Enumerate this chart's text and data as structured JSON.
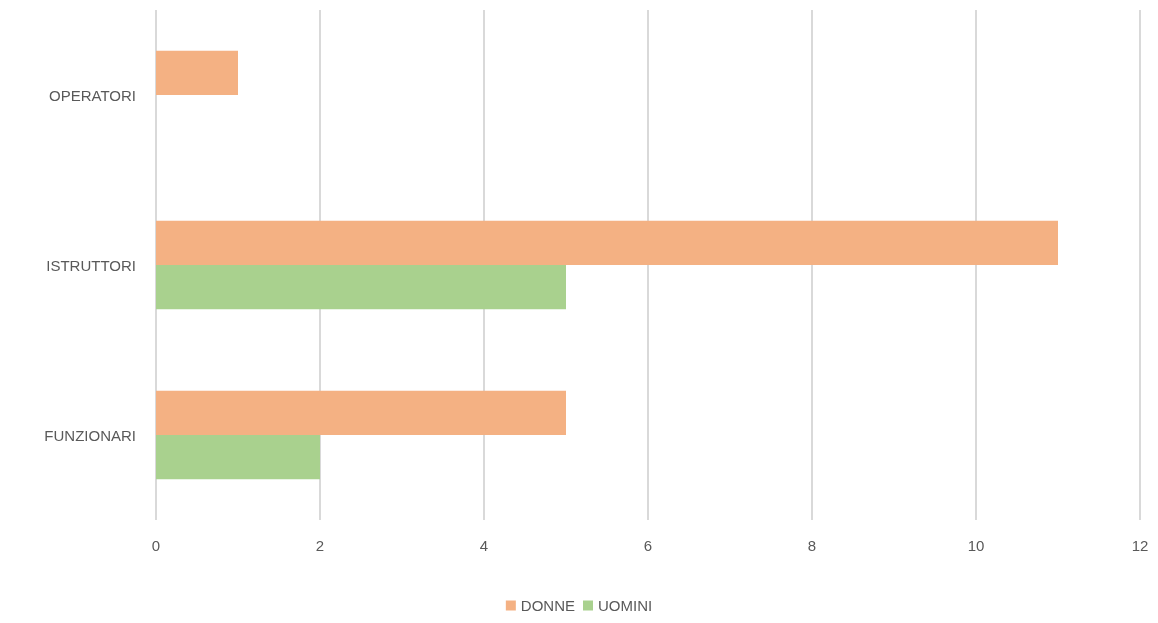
{
  "chart_data": {
    "type": "bar",
    "orientation": "horizontal",
    "categories": [
      "OPERATORI",
      "ISTRUTTORI",
      "FUNZIONARI"
    ],
    "series": [
      {
        "name": "DONNE",
        "color": "#f4b183",
        "values": [
          1,
          11,
          5
        ]
      },
      {
        "name": "UOMINI",
        "color": "#a9d18e",
        "values": [
          null,
          5,
          2
        ]
      }
    ],
    "xlim": [
      0,
      12
    ],
    "xticks": [
      0,
      2,
      4,
      6,
      8,
      10,
      12
    ],
    "grid": "x",
    "legend": "bottom"
  }
}
